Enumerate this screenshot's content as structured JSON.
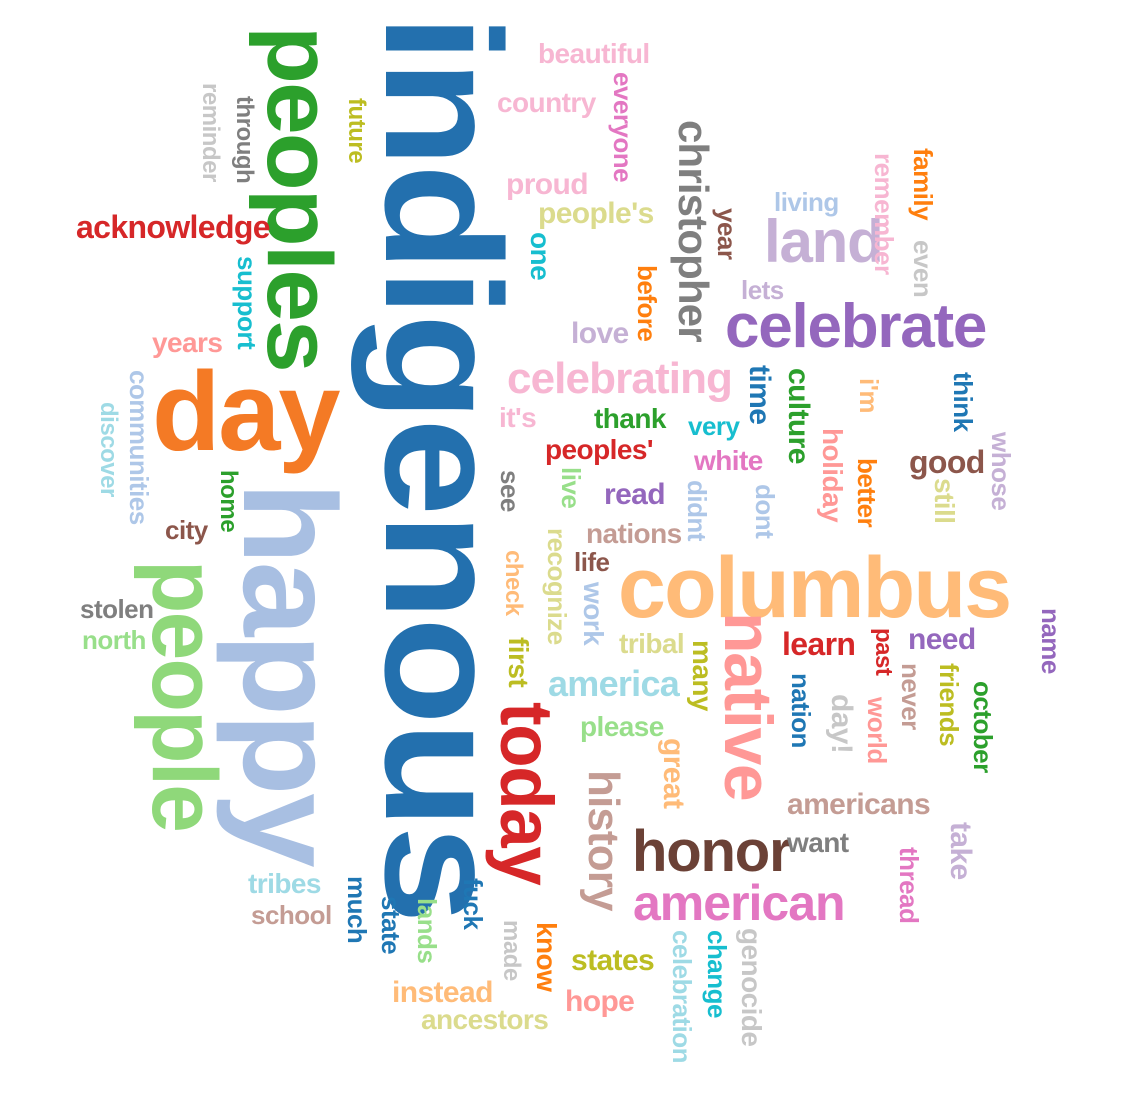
{
  "words": [
    {
      "text": "indigenous",
      "color": "#2370ae"
    },
    {
      "text": "happy",
      "color": "#a8bfe2"
    },
    {
      "text": "peoples",
      "color": "#2ca02c"
    },
    {
      "text": "day",
      "color": "#f47a25"
    },
    {
      "text": "people",
      "color": "#8fd87a"
    },
    {
      "text": "columbus",
      "color": "#ffbb78"
    },
    {
      "text": "native",
      "color": "#ff9896"
    },
    {
      "text": "today",
      "color": "#d62728"
    },
    {
      "text": "celebrate",
      "color": "#9467bd"
    },
    {
      "text": "land",
      "color": "#c5b0d5"
    },
    {
      "text": "christopher",
      "color": "#7f7f7f"
    },
    {
      "text": "honor",
      "color": "#6b4136"
    },
    {
      "text": "american",
      "color": "#e377c2"
    },
    {
      "text": "history",
      "color": "#c49c94"
    },
    {
      "text": "celebrating",
      "color": "#f7b6d2"
    },
    {
      "text": "acknowledge",
      "color": "#d62728"
    },
    {
      "text": "beautiful",
      "color": "#f7b6d2"
    },
    {
      "text": "country",
      "color": "#f7b6d2"
    },
    {
      "text": "everyone",
      "color": "#e377c2"
    },
    {
      "text": "proud",
      "color": "#f7b6d2"
    },
    {
      "text": "people's",
      "color": "#dbdb8d"
    },
    {
      "text": "one",
      "color": "#17becf"
    },
    {
      "text": "year",
      "color": "#8c564b"
    },
    {
      "text": "before",
      "color": "#ff7f0e"
    },
    {
      "text": "living",
      "color": "#aec7e8"
    },
    {
      "text": "lets",
      "color": "#c5b0d5"
    },
    {
      "text": "love",
      "color": "#c5b0d5"
    },
    {
      "text": "remember",
      "color": "#f7b6d2"
    },
    {
      "text": "family",
      "color": "#ff7f0e"
    },
    {
      "text": "even",
      "color": "#c7c7c7"
    },
    {
      "text": "reminder",
      "color": "#c7c7c7"
    },
    {
      "text": "through",
      "color": "#7f7f7f"
    },
    {
      "text": "future",
      "color": "#bcbd22"
    },
    {
      "text": "support",
      "color": "#17becf"
    },
    {
      "text": "years",
      "color": "#ff9896"
    },
    {
      "text": "communities",
      "color": "#aec7e8"
    },
    {
      "text": "discover",
      "color": "#9edae5"
    },
    {
      "text": "home",
      "color": "#2ca02c"
    },
    {
      "text": "city",
      "color": "#8c564b"
    },
    {
      "text": "stolen",
      "color": "#7f7f7f"
    },
    {
      "text": "north",
      "color": "#98df8a"
    },
    {
      "text": "time",
      "color": "#1f77b4"
    },
    {
      "text": "culture",
      "color": "#2ca02c"
    },
    {
      "text": "i'm",
      "color": "#ffbb78"
    },
    {
      "text": "think",
      "color": "#1f77b4"
    },
    {
      "text": "whose",
      "color": "#c5b0d5"
    },
    {
      "text": "it's",
      "color": "#f7b6d2"
    },
    {
      "text": "thank",
      "color": "#2ca02c"
    },
    {
      "text": "very",
      "color": "#17becf"
    },
    {
      "text": "holiday",
      "color": "#ff9896"
    },
    {
      "text": "better",
      "color": "#ff7f0e"
    },
    {
      "text": "good",
      "color": "#8c564b"
    },
    {
      "text": "peoples'",
      "color": "#d62728"
    },
    {
      "text": "white",
      "color": "#e377c2"
    },
    {
      "text": "still",
      "color": "#dbdb8d"
    },
    {
      "text": "see",
      "color": "#7f7f7f"
    },
    {
      "text": "live",
      "color": "#98df8a"
    },
    {
      "text": "read",
      "color": "#9467bd"
    },
    {
      "text": "didnt",
      "color": "#aec7e8"
    },
    {
      "text": "dont",
      "color": "#aec7e8"
    },
    {
      "text": "nations",
      "color": "#c49c94"
    },
    {
      "text": "check",
      "color": "#ffbb78"
    },
    {
      "text": "recognize",
      "color": "#dbdb8d"
    },
    {
      "text": "life",
      "color": "#8c564b"
    },
    {
      "text": "work",
      "color": "#aec7e8"
    },
    {
      "text": "first",
      "color": "#bcbd22"
    },
    {
      "text": "tribal",
      "color": "#dbdb8d"
    },
    {
      "text": "america",
      "color": "#9edae5"
    },
    {
      "text": "many",
      "color": "#bcbd22"
    },
    {
      "text": "learn",
      "color": "#d62728"
    },
    {
      "text": "need",
      "color": "#9467bd"
    },
    {
      "text": "past",
      "color": "#d62728"
    },
    {
      "text": "name",
      "color": "#9467bd"
    },
    {
      "text": "please",
      "color": "#98df8a"
    },
    {
      "text": "nation",
      "color": "#1f77b4"
    },
    {
      "text": "day!",
      "color": "#c7c7c7"
    },
    {
      "text": "world",
      "color": "#ff9896"
    },
    {
      "text": "never",
      "color": "#c49c94"
    },
    {
      "text": "friends",
      "color": "#bcbd22"
    },
    {
      "text": "october",
      "color": "#2ca02c"
    },
    {
      "text": "great",
      "color": "#ffbb78"
    },
    {
      "text": "americans",
      "color": "#c49c94"
    },
    {
      "text": "want",
      "color": "#7f7f7f"
    },
    {
      "text": "take",
      "color": "#c5b0d5"
    },
    {
      "text": "thread",
      "color": "#e377c2"
    },
    {
      "text": "tribes",
      "color": "#9edae5"
    },
    {
      "text": "school",
      "color": "#c49c94"
    },
    {
      "text": "much",
      "color": "#1f77b4"
    },
    {
      "text": "state",
      "color": "#1f77b4"
    },
    {
      "text": "lands",
      "color": "#98df8a"
    },
    {
      "text": "fuck",
      "color": "#1f77b4"
    },
    {
      "text": "made",
      "color": "#c7c7c7"
    },
    {
      "text": "know",
      "color": "#ff7f0e"
    },
    {
      "text": "states",
      "color": "#bcbd22"
    },
    {
      "text": "hope",
      "color": "#ff9896"
    },
    {
      "text": "celebration",
      "color": "#9edae5"
    },
    {
      "text": "change",
      "color": "#17becf"
    },
    {
      "text": "genocide",
      "color": "#c7c7c7"
    },
    {
      "text": "instead",
      "color": "#ffbb78"
    },
    {
      "text": "ancestors",
      "color": "#dbdb8d"
    }
  ]
}
